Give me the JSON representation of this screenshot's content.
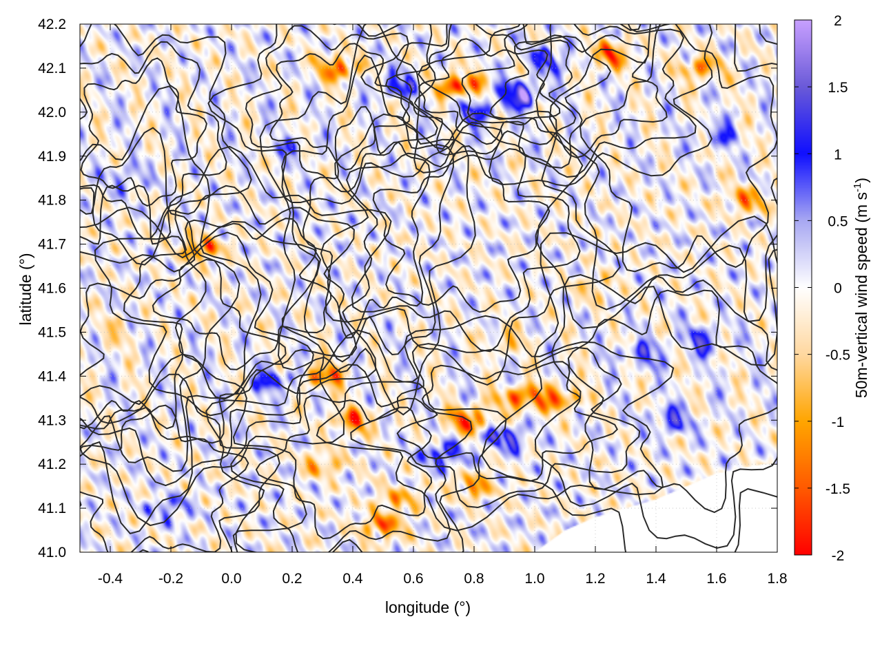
{
  "chart_data": {
    "type": "heatmap",
    "title": "",
    "xlabel": "longitude (°)",
    "ylabel": "latitude (°)",
    "colorbar_label": "50m-vertical wind speed (m s",
    "colorbar_label_sup": "-1",
    "colorbar_label_end": ")",
    "xlim": [
      -0.5,
      1.8
    ],
    "ylim": [
      41.0,
      42.2
    ],
    "clim": [
      -2,
      2
    ],
    "x_ticks": [
      -0.4,
      -0.2,
      0.0,
      0.2,
      0.4,
      0.6,
      0.8,
      1.0,
      1.2,
      1.4,
      1.6,
      1.8
    ],
    "x_tick_labels": [
      "-0.4",
      "-0.2",
      "0.0",
      "0.2",
      "0.4",
      "0.6",
      "0.8",
      "1.0",
      "1.2",
      "1.4",
      "1.6",
      "1.8"
    ],
    "y_ticks": [
      41.0,
      41.1,
      41.2,
      41.3,
      41.4,
      41.5,
      41.6,
      41.7,
      41.8,
      41.9,
      42.0,
      42.1,
      42.2
    ],
    "y_tick_labels": [
      "41.0",
      "41.1",
      "41.2",
      "41.3",
      "41.4",
      "41.5",
      "41.6",
      "41.7",
      "41.8",
      "41.9",
      "42.0",
      "42.1",
      "42.2"
    ],
    "colorbar_ticks": [
      2,
      1.5,
      1,
      0.5,
      0,
      -0.5,
      -1,
      -1.5,
      -2
    ],
    "colorbar_tick_labels": [
      "2",
      "1.5",
      "1",
      "0.5",
      "0",
      "-0.5",
      "-1",
      "-1.5",
      "-2"
    ],
    "colormap": [
      {
        "value": -2,
        "color": "#ff0000"
      },
      {
        "value": -1.5,
        "color": "#ff5a00"
      },
      {
        "value": -1,
        "color": "#ffa500"
      },
      {
        "value": -0.5,
        "color": "#ffd8a0"
      },
      {
        "value": 0,
        "color": "#ffffff"
      },
      {
        "value": 0.5,
        "color": "#a8a8f2"
      },
      {
        "value": 1,
        "color": "#1010ff"
      },
      {
        "value": 1.5,
        "color": "#6a5ad8"
      },
      {
        "value": 2,
        "color": "#c8a0ff"
      }
    ],
    "grid": true,
    "contours": true,
    "hotspots": [
      {
        "lon": 0.75,
        "lat": 42.06,
        "w": -2.0
      },
      {
        "lon": 0.95,
        "lat": 42.04,
        "w": 1.8
      },
      {
        "lon": 0.8,
        "lat": 42.0,
        "w": 1.2
      },
      {
        "lon": 0.35,
        "lat": 42.1,
        "w": -1.6
      },
      {
        "lon": 1.25,
        "lat": 42.13,
        "w": -1.6
      },
      {
        "lon": 1.55,
        "lat": 42.1,
        "w": -1.3
      },
      {
        "lon": 1.05,
        "lat": 42.12,
        "w": 1.2
      },
      {
        "lon": 0.55,
        "lat": 42.06,
        "w": 1.1
      },
      {
        "lon": 1.7,
        "lat": 41.8,
        "w": -1.3
      },
      {
        "lon": 1.55,
        "lat": 41.48,
        "w": 1.1
      },
      {
        "lon": 1.35,
        "lat": 41.45,
        "w": 1.0
      },
      {
        "lon": -0.1,
        "lat": 41.69,
        "w": -1.5
      },
      {
        "lon": 0.3,
        "lat": 41.4,
        "w": -1.6
      },
      {
        "lon": 0.4,
        "lat": 41.3,
        "w": -1.5
      },
      {
        "lon": 0.15,
        "lat": 41.39,
        "w": 1.2
      },
      {
        "lon": 0.78,
        "lat": 41.3,
        "w": -1.8
      },
      {
        "lon": 0.95,
        "lat": 41.35,
        "w": -1.7
      },
      {
        "lon": 1.08,
        "lat": 41.35,
        "w": -1.5
      },
      {
        "lon": 0.9,
        "lat": 41.26,
        "w": 1.4
      },
      {
        "lon": 0.7,
        "lat": 41.22,
        "w": 1.3
      },
      {
        "lon": 0.8,
        "lat": 41.15,
        "w": -1.2
      },
      {
        "lon": 0.5,
        "lat": 41.06,
        "w": -1.5
      },
      {
        "lon": 0.55,
        "lat": 41.12,
        "w": -1.0
      },
      {
        "lon": 0.3,
        "lat": 41.2,
        "w": -1.0
      },
      {
        "lon": 1.2,
        "lat": 41.6,
        "w": -0.7
      },
      {
        "lon": 0.9,
        "lat": 41.48,
        "w": -0.7
      },
      {
        "lon": -0.35,
        "lat": 41.85,
        "w": 0.7
      },
      {
        "lon": -0.2,
        "lat": 41.1,
        "w": 0.8
      },
      {
        "lon": 1.45,
        "lat": 41.3,
        "w": 1.1
      },
      {
        "lon": 0.2,
        "lat": 41.92,
        "w": 0.6
      },
      {
        "lon": 1.6,
        "lat": 41.95,
        "w": 0.8
      },
      {
        "lon": -0.4,
        "lat": 41.5,
        "w": -0.5
      }
    ]
  }
}
